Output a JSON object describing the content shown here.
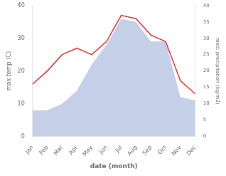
{
  "chart_data": {
    "type": "line",
    "categories": [
      "Jan",
      "Feb",
      "Mar",
      "Apr",
      "May",
      "Jun",
      "Jul",
      "Aug",
      "Sep",
      "Oct",
      "Nov",
      "Dec"
    ],
    "series": [
      {
        "type": "line",
        "color": "#cc3333",
        "values": [
          16,
          20,
          25,
          27,
          25,
          29,
          37,
          36,
          31,
          29,
          17,
          13
        ]
      },
      {
        "type": "area",
        "color": "#c5d0e8",
        "axis": "y2",
        "values": [
          8,
          8,
          10,
          14,
          22,
          28,
          36,
          35,
          29,
          29,
          12,
          11
        ]
      }
    ],
    "xlabel": "date (month)",
    "ylabel": "max temp (C)",
    "y2label": "med. precipitation (kg/m2)",
    "ylim": [
      0,
      40
    ],
    "yticks": [
      0,
      10,
      20,
      30,
      40
    ],
    "y2lim": [
      0,
      40
    ],
    "y2ticks": [
      0,
      5,
      10,
      15,
      20,
      25,
      30,
      35,
      40
    ],
    "grid": false
  }
}
